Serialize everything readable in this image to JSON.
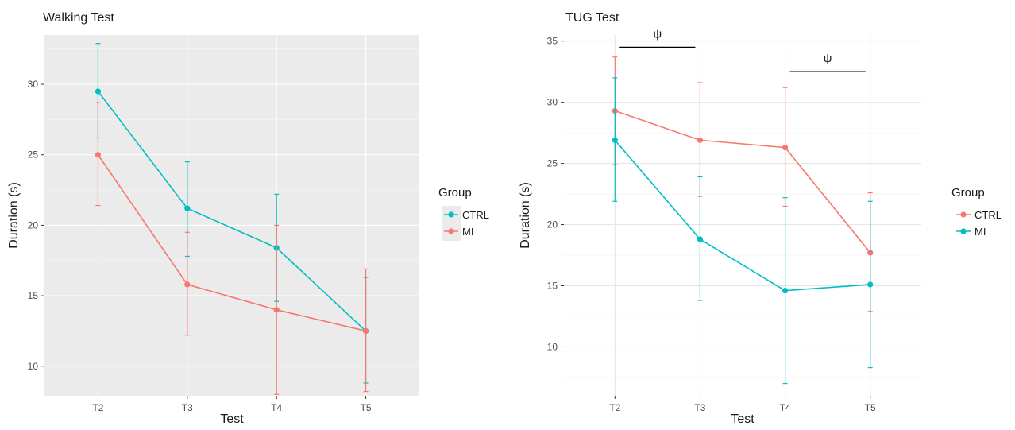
{
  "chart_data": [
    {
      "type": "line",
      "title": "Walking Test",
      "xlabel": "Test",
      "ylabel": "Duration (s)",
      "categories": [
        "T2",
        "T3",
        "T4",
        "T5"
      ],
      "yticks": [
        10,
        15,
        20,
        25,
        30
      ],
      "ylim": [
        7.9,
        33.5
      ],
      "theme": "grey",
      "grid": true,
      "legend": {
        "title": "Group",
        "position": "right",
        "background": "#ebebeb",
        "items": [
          {
            "label": "CTRL",
            "color": "#00BFC4"
          },
          {
            "label": "MI",
            "color": "#F8766D"
          }
        ]
      },
      "series": [
        {
          "name": "CTRL",
          "color": "#00BFC4",
          "values": [
            29.5,
            21.2,
            18.4,
            12.5
          ],
          "lower": [
            26.2,
            17.8,
            14.6,
            8.8
          ],
          "upper": [
            32.9,
            24.5,
            22.2,
            16.3
          ]
        },
        {
          "name": "MI",
          "color": "#F8766D",
          "values": [
            25.0,
            15.8,
            14.0,
            12.5
          ],
          "lower": [
            21.4,
            12.2,
            8.0,
            8.2
          ],
          "upper": [
            28.7,
            19.5,
            20.0,
            16.9
          ]
        }
      ],
      "annotations": []
    },
    {
      "type": "line",
      "title": "TUG Test",
      "xlabel": "Test",
      "ylabel": "Duration (s)",
      "categories": [
        "T2",
        "T3",
        "T4",
        "T5"
      ],
      "yticks": [
        10,
        15,
        20,
        25,
        30,
        35
      ],
      "ylim": [
        6.0,
        35.5
      ],
      "theme": "minimal",
      "grid": true,
      "legend": {
        "title": "Group",
        "position": "right",
        "background": "#ffffff",
        "items": [
          {
            "label": "CTRL",
            "color": "#F8766D"
          },
          {
            "label": "MI",
            "color": "#00BFC4"
          }
        ]
      },
      "series": [
        {
          "name": "CTRL",
          "color": "#F8766D",
          "values": [
            29.3,
            26.9,
            26.3,
            17.7
          ],
          "lower": [
            24.9,
            22.3,
            21.5,
            12.9
          ],
          "upper": [
            33.7,
            31.6,
            31.2,
            22.6
          ]
        },
        {
          "name": "MI",
          "color": "#00BFC4",
          "values": [
            26.9,
            18.8,
            14.6,
            15.1
          ],
          "lower": [
            21.9,
            13.8,
            7.0,
            8.3
          ],
          "upper": [
            32.0,
            23.9,
            22.2,
            21.9
          ]
        }
      ],
      "annotations": [
        {
          "label": "ψ",
          "from": "T2",
          "to": "T3",
          "y": 34.5
        },
        {
          "label": "ψ",
          "from": "T4",
          "to": "T5",
          "y": 32.5
        }
      ]
    }
  ]
}
